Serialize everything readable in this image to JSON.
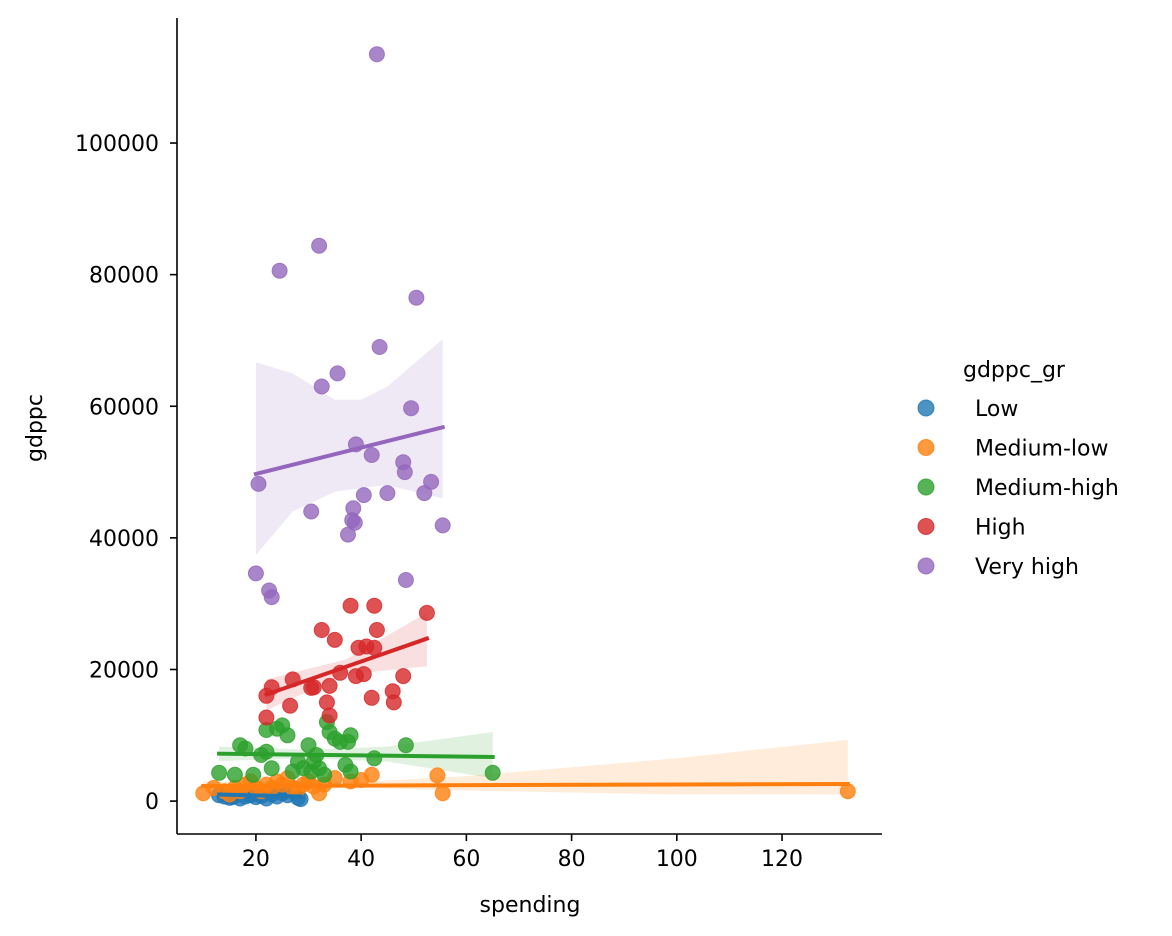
{
  "chart_data": {
    "type": "scatter",
    "xlabel": "spending",
    "ylabel": "gdppc",
    "xlim": [
      5,
      139
    ],
    "ylim": [
      -5000,
      119000
    ],
    "x_ticks": [
      20,
      40,
      60,
      80,
      100,
      120
    ],
    "y_ticks": [
      0,
      20000,
      40000,
      60000,
      80000,
      100000
    ],
    "grid": false,
    "legend": {
      "title": "gdppc_gr",
      "placement": "right",
      "entries": [
        "Low",
        "Medium-low",
        "Medium-high",
        "High",
        "Very high"
      ]
    },
    "series": [
      {
        "name": "Low",
        "color": "#1f77b4",
        "points": [
          [
            13,
            900
          ],
          [
            14,
            700
          ],
          [
            15,
            500
          ],
          [
            15.5,
            600
          ],
          [
            16,
            800
          ],
          [
            17,
            400
          ],
          [
            18,
            700
          ],
          [
            19,
            900
          ],
          [
            20,
            600
          ],
          [
            21,
            800
          ],
          [
            22,
            400
          ],
          [
            23,
            1000
          ],
          [
            24,
            700
          ],
          [
            25,
            1200
          ],
          [
            26,
            900
          ],
          [
            28,
            500
          ],
          [
            28.5,
            300
          ]
        ],
        "regression": {
          "x": [
            13,
            28.5
          ],
          "y": [
            1000,
            700
          ]
        },
        "band": {
          "x": [
            13,
            20,
            28.5
          ],
          "upper": [
            1500,
            1200,
            1300
          ],
          "lower": [
            500,
            400,
            100
          ]
        }
      },
      {
        "name": "Medium-low",
        "color": "#ff7f0e",
        "points": [
          [
            10,
            1200
          ],
          [
            12,
            2000
          ],
          [
            14,
            1500
          ],
          [
            15,
            1000
          ],
          [
            16,
            2000
          ],
          [
            17,
            1500
          ],
          [
            18,
            2500
          ],
          [
            19,
            3000
          ],
          [
            20,
            2000
          ],
          [
            21,
            1500
          ],
          [
            22,
            2500
          ],
          [
            23,
            2000
          ],
          [
            24,
            3000
          ],
          [
            25,
            2500
          ],
          [
            26,
            3500
          ],
          [
            27,
            2000
          ],
          [
            28,
            1800
          ],
          [
            29,
            2500
          ],
          [
            30,
            3000
          ],
          [
            31,
            2200
          ],
          [
            32,
            1200
          ],
          [
            33,
            2500
          ],
          [
            35,
            3500
          ],
          [
            38,
            3000
          ],
          [
            40,
            3200
          ],
          [
            42,
            4000
          ],
          [
            54.5,
            3900
          ],
          [
            55.5,
            1200
          ],
          [
            132.5,
            1500
          ]
        ],
        "regression": {
          "x": [
            10,
            132.5
          ],
          "y": [
            2300,
            2600
          ]
        },
        "band": {
          "x": [
            10,
            40,
            60,
            100,
            132.5
          ],
          "upper": [
            3000,
            2900,
            3800,
            6500,
            9300
          ],
          "lower": [
            1700,
            2000,
            1600,
            1000,
            1000
          ]
        }
      },
      {
        "name": "Medium-high",
        "color": "#2ca02c",
        "points": [
          [
            13,
            4300
          ],
          [
            16,
            4000
          ],
          [
            17,
            8500
          ],
          [
            18,
            8000
          ],
          [
            19.5,
            4000
          ],
          [
            21,
            7000
          ],
          [
            22,
            10800
          ],
          [
            22,
            7500
          ],
          [
            23,
            5000
          ],
          [
            24,
            11000
          ],
          [
            25,
            11500
          ],
          [
            26,
            10000
          ],
          [
            27,
            4500
          ],
          [
            28,
            6000
          ],
          [
            29,
            5000
          ],
          [
            30,
            8500
          ],
          [
            30.5,
            4500
          ],
          [
            31,
            6000
          ],
          [
            31.5,
            7000
          ],
          [
            32,
            5000
          ],
          [
            33,
            4000
          ],
          [
            33.5,
            12000
          ],
          [
            34,
            10500
          ],
          [
            35,
            9500
          ],
          [
            36,
            9000
          ],
          [
            37,
            5500
          ],
          [
            37.5,
            9000
          ],
          [
            38,
            10000
          ],
          [
            38,
            4500
          ],
          [
            42.5,
            6500
          ],
          [
            48.5,
            8500
          ],
          [
            65,
            4300
          ]
        ],
        "regression": {
          "x": [
            13,
            65
          ],
          "y": [
            7200,
            6700
          ]
        },
        "band": {
          "x": [
            13,
            30,
            45,
            65
          ],
          "upper": [
            8300,
            7800,
            8300,
            10500
          ],
          "lower": [
            6100,
            6500,
            6000,
            3500
          ]
        }
      },
      {
        "name": "High",
        "color": "#d62728",
        "points": [
          [
            22,
            16000
          ],
          [
            22,
            12700
          ],
          [
            23,
            17300
          ],
          [
            26.5,
            14500
          ],
          [
            27,
            18500
          ],
          [
            30.5,
            17200
          ],
          [
            31,
            17300
          ],
          [
            32.5,
            26000
          ],
          [
            33.5,
            15000
          ],
          [
            34,
            13000
          ],
          [
            34,
            17500
          ],
          [
            35,
            24500
          ],
          [
            36,
            19500
          ],
          [
            38,
            29700
          ],
          [
            39,
            19000
          ],
          [
            39.5,
            23300
          ],
          [
            40.5,
            19300
          ],
          [
            41,
            23500
          ],
          [
            42,
            15700
          ],
          [
            42.5,
            29700
          ],
          [
            42.5,
            23300
          ],
          [
            43,
            26000
          ],
          [
            46,
            16700
          ],
          [
            46.2,
            15000
          ],
          [
            48,
            19000
          ],
          [
            52.5,
            28600
          ]
        ],
        "regression": {
          "x": [
            22,
            52.5
          ],
          "y": [
            16200,
            24700
          ]
        },
        "band": {
          "x": [
            22,
            37,
            52.5
          ],
          "upper": [
            18500,
            21500,
            28600
          ],
          "lower": [
            13800,
            19200,
            20500
          ]
        }
      },
      {
        "name": "Very high",
        "color": "#9467bd",
        "points": [
          [
            20,
            34600
          ],
          [
            20.5,
            48200
          ],
          [
            22.5,
            32000
          ],
          [
            23,
            31000
          ],
          [
            24.5,
            80600
          ],
          [
            30.5,
            44000
          ],
          [
            32,
            84400
          ],
          [
            32.5,
            63000
          ],
          [
            35.5,
            65000
          ],
          [
            37.5,
            40500
          ],
          [
            38.3,
            42700
          ],
          [
            38.5,
            44500
          ],
          [
            38.8,
            42300
          ],
          [
            39,
            54200
          ],
          [
            40.5,
            46500
          ],
          [
            42,
            52600
          ],
          [
            43,
            113500
          ],
          [
            43.5,
            69000
          ],
          [
            45,
            46800
          ],
          [
            48,
            51500
          ],
          [
            48.3,
            50000
          ],
          [
            48.5,
            33600
          ],
          [
            49.5,
            59700
          ],
          [
            50.5,
            76500
          ],
          [
            52,
            46800
          ],
          [
            53.3,
            48500
          ],
          [
            55.5,
            41900
          ]
        ],
        "regression": {
          "x": [
            20,
            55.5
          ],
          "y": [
            49700,
            56800
          ]
        },
        "band": {
          "x": [
            20,
            27,
            35,
            40,
            45,
            55.5
          ],
          "upper": [
            66700,
            65000,
            61000,
            61000,
            63000,
            70200
          ],
          "lower": [
            37400,
            44000,
            47000,
            47600,
            48000,
            46000
          ]
        }
      }
    ]
  }
}
